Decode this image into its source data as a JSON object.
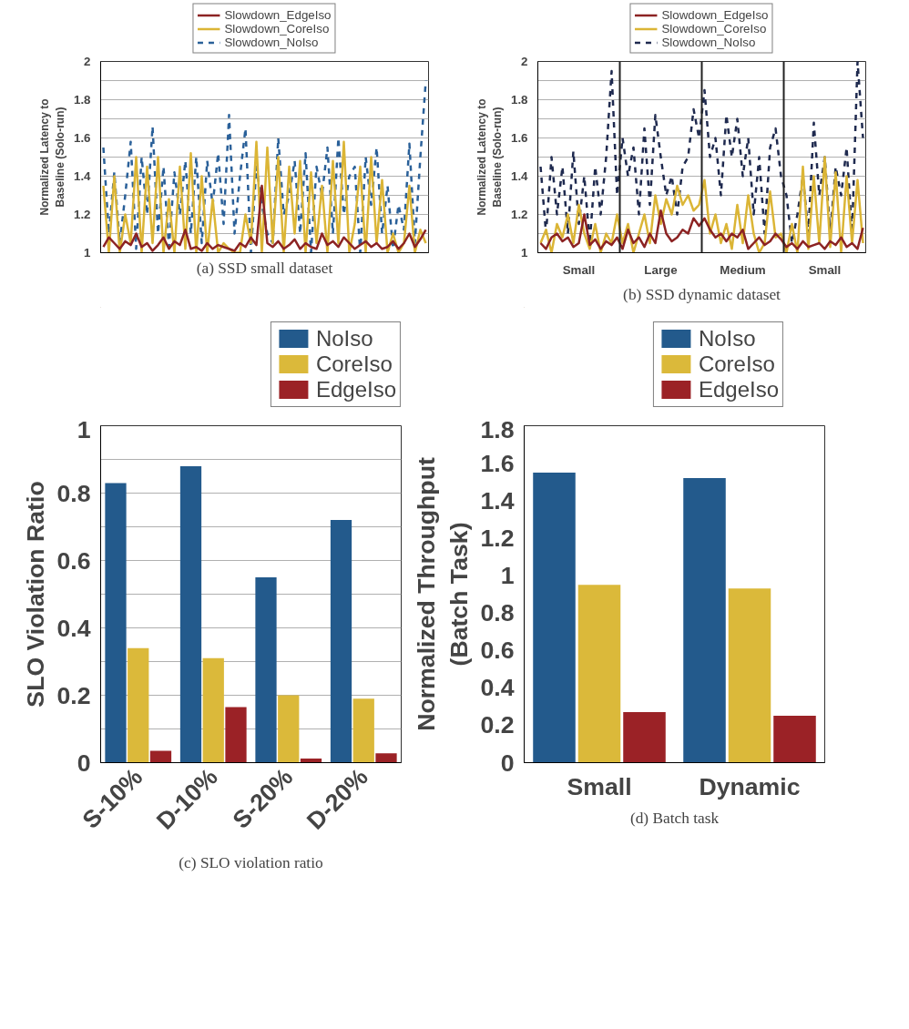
{
  "chart_data": [
    {
      "type": "line",
      "title": "(a) SSD small dataset",
      "ylabel": "Normalized Latency to\nBaseline (Solo-run)",
      "legend": "top",
      "grid": "y",
      "tick_labels": "y",
      "ylim": [
        1,
        2
      ],
      "yticks": [
        1,
        {
          "value": 1.1,
          "label": null
        },
        1.2,
        {
          "value": 1.3,
          "label": null
        },
        1.4,
        {
          "value": 1.5,
          "label": null
        },
        1.6,
        {
          "value": 1.7,
          "label": null
        },
        1.8,
        {
          "value": 1.9,
          "label": null
        },
        2
      ],
      "categories": [
        null,
        null,
        null,
        null,
        null,
        null,
        null,
        null,
        null,
        null,
        null,
        null,
        null,
        null,
        null,
        null,
        null,
        null,
        null,
        null,
        null,
        null,
        null,
        null,
        null,
        null,
        null,
        null,
        null,
        null,
        null,
        null,
        null,
        null,
        null,
        null,
        null,
        null,
        null,
        null,
        null,
        null,
        null,
        null,
        null,
        null,
        null,
        null,
        null,
        null,
        null,
        null,
        null,
        null,
        null,
        null,
        null,
        null,
        null,
        null
      ],
      "series": [
        {
          "name": "Slowdown_EdgeIso",
          "color": "#8c2323",
          "line_style": "solid",
          "values": [
            1.03,
            1.08,
            1.05,
            1.02,
            1.06,
            1.04,
            1.1,
            1.03,
            1.05,
            1.01,
            1.04,
            1.08,
            1.02,
            1.06,
            1.04,
            1.12,
            1.02,
            1.03,
            1.01,
            1.05,
            1.02,
            1.04,
            1.03,
            1.02,
            1.01,
            1.05,
            1.03,
            1.08,
            1.04,
            1.35,
            1.05,
            1.03,
            1.06,
            1.02,
            1.04,
            1.07,
            1.02,
            1.05,
            1.03,
            1.02,
            1.1,
            1.04,
            1.06,
            1.03,
            1.08,
            1.05,
            1.02,
            1.04,
            1.06,
            1.03,
            1.05,
            1.02,
            1.03,
            1.06,
            1.02,
            1.05,
            1.1,
            1.03,
            1.07,
            1.12
          ]
        },
        {
          "name": "Slowdown_CoreIso",
          "color": "#dbb536",
          "line_style": "solid",
          "values": [
            1.35,
            1.0,
            1.4,
            1.0,
            1.2,
            1.05,
            1.5,
            1.0,
            1.45,
            1.05,
            1.5,
            1.0,
            1.28,
            1.0,
            1.45,
            1.02,
            1.52,
            1.0,
            1.4,
            1.0,
            1.28,
            1.0,
            1.05,
            1.02,
            1.0,
            1.0,
            1.2,
            1.05,
            1.58,
            1.0,
            1.55,
            1.05,
            1.5,
            1.0,
            1.45,
            1.1,
            1.48,
            1.0,
            1.42,
            1.05,
            1.35,
            1.0,
            1.48,
            1.05,
            1.58,
            1.0,
            1.15,
            1.45,
            1.0,
            1.5,
            1.05,
            1.38,
            1.0,
            1.1,
            1.0,
            1.05,
            1.35,
            1.0,
            1.12,
            1.05
          ]
        },
        {
          "name": "Slowdown_NoIso",
          "color": "#2a6099",
          "line_style": "dashed",
          "values": [
            1.55,
            1.1,
            1.42,
            1.05,
            1.3,
            1.58,
            1.02,
            1.5,
            1.2,
            1.66,
            1.1,
            1.45,
            1.03,
            1.42,
            1.2,
            1.48,
            1.1,
            1.5,
            1.05,
            1.48,
            1.25,
            1.52,
            1.15,
            1.72,
            1.1,
            1.4,
            1.65,
            1.0,
            1.45,
            1.25,
            1.1,
            1.05,
            1.6,
            1.2,
            1.3,
            1.48,
            1.1,
            1.52,
            1.0,
            1.45,
            1.3,
            1.55,
            1.1,
            1.6,
            1.2,
            1.4,
            1.45,
            1.0,
            1.5,
            1.25,
            1.55,
            1.1,
            1.35,
            1.02,
            1.25,
            1.12,
            1.57,
            1.05,
            1.5,
            1.9
          ]
        }
      ]
    },
    {
      "type": "line",
      "title": "(b) SSD dynamic dataset",
      "ylabel": "Normalized Latency to\nBaseline (Solo-run)",
      "legend": "top",
      "grid": "y",
      "ylim": [
        1,
        2
      ],
      "annotations": [
        "Small",
        "Large",
        "Medium",
        "Small"
      ],
      "categories": [
        null,
        null,
        null,
        null,
        null,
        null,
        null,
        null,
        null,
        null,
        null,
        null,
        null,
        null,
        null,
        null,
        null,
        null,
        null,
        null,
        null,
        null,
        null,
        null,
        null,
        null,
        null,
        null,
        null,
        null,
        null,
        null,
        null,
        null,
        null,
        null,
        null,
        null,
        null,
        null,
        null,
        null,
        null,
        null,
        null,
        null,
        null,
        null,
        null,
        null,
        null,
        null,
        null,
        null,
        null,
        null,
        null,
        null,
        null,
        null
      ],
      "yticks": [
        1,
        {
          "value": 1.1,
          "label": null
        },
        1.2,
        {
          "value": 1.3,
          "label": null
        },
        1.4,
        {
          "value": 1.5,
          "label": null
        },
        1.6,
        {
          "value": 1.7,
          "label": null
        },
        1.8,
        {
          "value": 1.9,
          "label": null
        },
        2
      ],
      "series": [
        {
          "name": "Slowdown_EdgeIso",
          "color": "#8c2323",
          "line_style": "solid",
          "values": [
            1.05,
            1.02,
            1.08,
            1.1,
            1.06,
            1.08,
            1.03,
            1.05,
            1.2,
            1.04,
            1.07,
            1.02,
            1.06,
            1.04,
            1.08,
            1.02,
            1.12,
            1.05,
            1.08,
            1.03,
            1.1,
            1.05,
            1.22,
            1.1,
            1.06,
            1.08,
            1.12,
            1.1,
            1.18,
            1.14,
            1.18,
            1.12,
            1.08,
            1.1,
            1.06,
            1.1,
            1.08,
            1.12,
            1.02,
            1.05,
            1.08,
            1.04,
            1.06,
            1.1,
            1.07,
            1.03,
            1.05,
            1.02,
            1.06,
            1.03,
            1.04,
            1.05,
            1.02,
            1.06,
            1.04,
            1.08,
            1.03,
            1.05,
            1.02,
            1.13
          ]
        },
        {
          "name": "Slowdown_CoreIso",
          "color": "#dbb536",
          "line_style": "solid",
          "values": [
            1.05,
            1.12,
            1.0,
            1.15,
            1.08,
            1.2,
            1.05,
            1.25,
            1.1,
            1.02,
            1.15,
            1.0,
            1.1,
            1.05,
            1.2,
            1.05,
            1.15,
            1.0,
            1.1,
            1.2,
            1.05,
            1.3,
            1.15,
            1.28,
            1.2,
            1.35,
            1.25,
            1.3,
            1.22,
            1.25,
            1.38,
            1.1,
            1.2,
            1.05,
            1.15,
            1.02,
            1.25,
            1.05,
            1.3,
            1.1,
            1.0,
            1.05,
            1.32,
            1.08,
            1.1,
            1.0,
            1.15,
            1.0,
            1.45,
            1.02,
            1.4,
            1.05,
            1.5,
            1.03,
            1.42,
            1.0,
            1.4,
            1.05,
            1.38,
            1.05
          ]
        },
        {
          "name": "Slowdown_NoIso",
          "color": "#1f2a4f",
          "line_style": "dashed",
          "values": [
            1.45,
            1.1,
            1.5,
            1.2,
            1.45,
            1.1,
            1.53,
            1.15,
            1.4,
            1.05,
            1.45,
            1.2,
            1.5,
            1.95,
            1.3,
            1.6,
            1.4,
            1.55,
            1.2,
            1.65,
            1.25,
            1.72,
            1.5,
            1.3,
            1.4,
            1.2,
            1.45,
            1.5,
            1.75,
            1.6,
            1.85,
            1.5,
            1.6,
            1.3,
            1.72,
            1.5,
            1.7,
            1.4,
            1.6,
            1.2,
            1.5,
            1.1,
            1.55,
            1.65,
            1.4,
            1.3,
            1.05,
            1.2,
            1.4,
            1.1,
            1.68,
            1.3,
            1.5,
            1.1,
            1.45,
            1.3,
            1.55,
            1.1,
            2.0,
            1.6
          ]
        }
      ]
    },
    {
      "type": "bar",
      "title": "(c) SLO violation ratio",
      "ylabel": "SLO Violation Ratio",
      "legend": "top right",
      "grid": "y",
      "ylim": [
        0,
        1
      ],
      "yticks": [
        0,
        {
          "value": 0.1,
          "label": null
        },
        0.2,
        {
          "value": 0.3,
          "label": null
        },
        0.4,
        {
          "value": 0.5,
          "label": null
        },
        0.6,
        {
          "value": 0.7,
          "label": null
        },
        0.8,
        {
          "value": 0.9,
          "label": null
        },
        1
      ],
      "categories": [
        "S-10%",
        "D-10%",
        "S-20%",
        "D-20%"
      ],
      "series": [
        {
          "name": "NoIso",
          "color": "#235a8c",
          "values": [
            0.83,
            0.88,
            0.55,
            0.72
          ]
        },
        {
          "name": "CoreIso",
          "color": "#dbb93a",
          "values": [
            0.34,
            0.31,
            0.2,
            0.19
          ]
        },
        {
          "name": "EdgeIso",
          "color": "#9b2226",
          "values": [
            0.035,
            0.165,
            0.012,
            0.028
          ]
        }
      ]
    },
    {
      "type": "bar",
      "title": "(d) Batch task",
      "ylabel": "Normalized Throughput\n(Batch Task)",
      "legend": "top right",
      "ylim": [
        0,
        1.8
      ],
      "yticks": [
        0,
        0.2,
        0.4,
        0.6,
        0.8,
        1,
        1.2,
        1.4,
        1.6,
        1.8
      ],
      "categories": [
        "Small",
        "Dynamic"
      ],
      "series": [
        {
          "name": "NoIso",
          "color": "#235a8c",
          "values": [
            1.55,
            1.52
          ]
        },
        {
          "name": "CoreIso",
          "color": "#dbb93a",
          "values": [
            0.95,
            0.93
          ]
        },
        {
          "name": "EdgeIso",
          "color": "#9b2226",
          "values": [
            0.27,
            0.25
          ]
        }
      ]
    }
  ]
}
